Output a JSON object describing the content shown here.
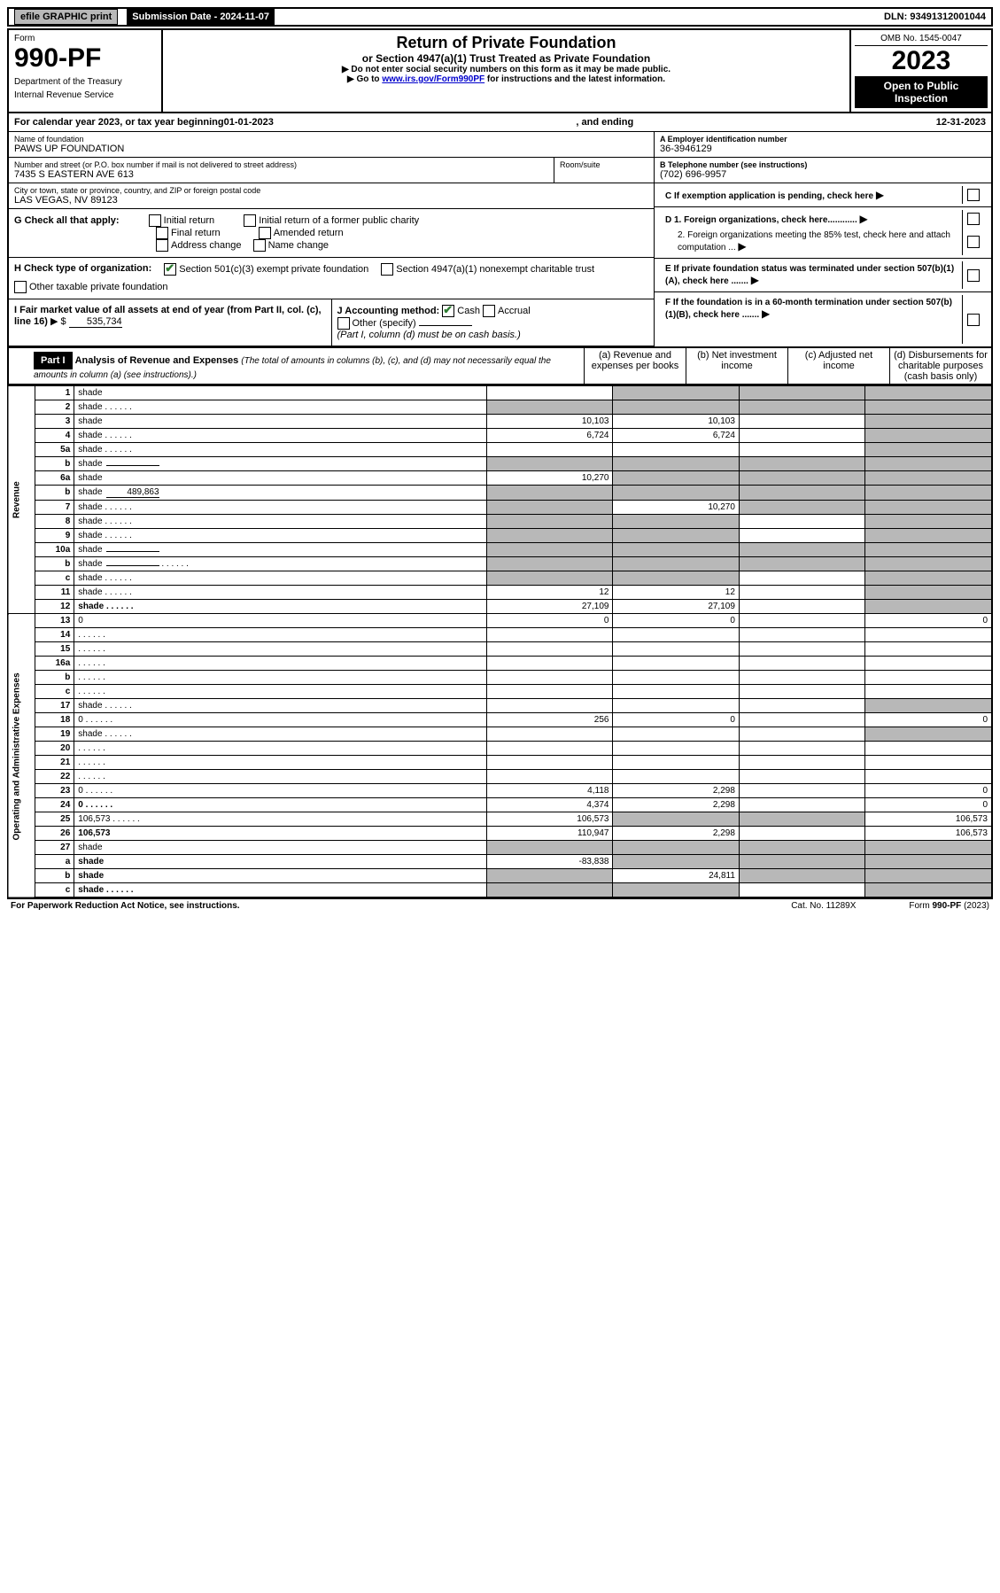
{
  "top": {
    "efile": "efile GRAPHIC print",
    "submission_label": "Submission Date - 2024-11-07",
    "dln": "DLN: 93491312001044"
  },
  "header": {
    "form_label": "Form",
    "form_number": "990-PF",
    "dept": "Department of the Treasury",
    "irs": "Internal Revenue Service",
    "title": "Return of Private Foundation",
    "subtitle": "or Section 4947(a)(1) Trust Treated as Private Foundation",
    "instr1": "▶ Do not enter social security numbers on this form as it may be made public.",
    "instr2_prefix": "▶ Go to ",
    "instr2_link": "www.irs.gov/Form990PF",
    "instr2_suffix": " for instructions and the latest information.",
    "omb": "OMB No. 1545-0047",
    "year": "2023",
    "open": "Open to Public Inspection"
  },
  "calendar": {
    "prefix": "For calendar year 2023, or tax year beginning ",
    "begin": "01-01-2023",
    "mid": " , and ending ",
    "end": "12-31-2023"
  },
  "foundation": {
    "name_label": "Name of foundation",
    "name": "PAWS UP FOUNDATION",
    "addr_label": "Number and street (or P.O. box number if mail is not delivered to street address)",
    "addr": "7435 S EASTERN AVE 613",
    "room_label": "Room/suite",
    "city_label": "City or town, state or province, country, and ZIP or foreign postal code",
    "city": "LAS VEGAS, NV  89123",
    "ein_label": "A Employer identification number",
    "ein": "36-3946129",
    "phone_label": "B Telephone number (see instructions)",
    "phone": "(702) 696-9957",
    "c_label": "C If exemption application is pending, check here",
    "d1": "D 1. Foreign organizations, check here............",
    "d2": "2. Foreign organizations meeting the 85% test, check here and attach computation ...",
    "e": "E  If private foundation status was terminated under section 507(b)(1)(A), check here .......",
    "f": "F  If the foundation is in a 60-month termination under section 507(b)(1)(B), check here ......."
  },
  "g": {
    "label": "G Check all that apply:",
    "opts": [
      "Initial return",
      "Final return",
      "Address change",
      "Initial return of a former public charity",
      "Amended return",
      "Name change"
    ]
  },
  "h": {
    "label": "H Check type of organization:",
    "opt1": "Section 501(c)(3) exempt private foundation",
    "opt2": "Section 4947(a)(1) nonexempt charitable trust",
    "opt3": "Other taxable private foundation"
  },
  "i": {
    "label": "I Fair market value of all assets at end of year (from Part II, col. (c), line 16)",
    "arrow": "▶ $",
    "value": "535,734"
  },
  "j": {
    "label": "J Accounting method:",
    "cash": "Cash",
    "accrual": "Accrual",
    "other": "Other (specify)",
    "note": "(Part I, column (d) must be on cash basis.)"
  },
  "part1": {
    "badge": "Part I",
    "title": "Analysis of Revenue and Expenses",
    "sub": "(The total of amounts in columns (b), (c), and (d) may not necessarily equal the amounts in column (a) (see instructions).)",
    "col_a": "(a) Revenue and expenses per books",
    "col_b": "(b) Net investment income",
    "col_c": "(c) Adjusted net income",
    "col_d": "(d) Disbursements for charitable purposes (cash basis only)"
  },
  "side_labels": {
    "revenue": "Revenue",
    "expenses": "Operating and Administrative Expenses"
  },
  "rows": [
    {
      "n": "1",
      "d": "shade",
      "a": "",
      "b": "shade",
      "c": "shade"
    },
    {
      "n": "2",
      "d": "shade",
      "a": "shade",
      "b": "shade",
      "c": "shade",
      "dots": true
    },
    {
      "n": "3",
      "d": "shade",
      "a": "10,103",
      "b": "10,103",
      "c": ""
    },
    {
      "n": "4",
      "d": "shade",
      "a": "6,724",
      "b": "6,724",
      "c": "",
      "dots": true
    },
    {
      "n": "5a",
      "d": "shade",
      "a": "",
      "b": "",
      "c": "",
      "dots": true
    },
    {
      "n": "b",
      "d": "shade",
      "a": "shade",
      "b": "shade",
      "c": "shade",
      "inline": ""
    },
    {
      "n": "6a",
      "d": "shade",
      "a": "10,270",
      "b": "shade",
      "c": "shade"
    },
    {
      "n": "b",
      "d": "shade",
      "a": "shade",
      "b": "shade",
      "c": "shade",
      "inline": "489,863"
    },
    {
      "n": "7",
      "d": "shade",
      "a": "shade",
      "b": "10,270",
      "c": "shade",
      "dots": true
    },
    {
      "n": "8",
      "d": "shade",
      "a": "shade",
      "b": "shade",
      "c": "",
      "dots": true
    },
    {
      "n": "9",
      "d": "shade",
      "a": "shade",
      "b": "shade",
      "c": "",
      "dots": true
    },
    {
      "n": "10a",
      "d": "shade",
      "a": "shade",
      "b": "shade",
      "c": "shade",
      "inline": ""
    },
    {
      "n": "b",
      "d": "shade",
      "a": "shade",
      "b": "shade",
      "c": "shade",
      "dots": true,
      "inline": ""
    },
    {
      "n": "c",
      "d": "shade",
      "a": "shade",
      "b": "shade",
      "c": "",
      "dots": true
    },
    {
      "n": "11",
      "d": "shade",
      "a": "12",
      "b": "12",
      "c": "",
      "dots": true
    },
    {
      "n": "12",
      "d": "shade",
      "a": "27,109",
      "b": "27,109",
      "c": "",
      "bold": true,
      "dots": true
    },
    {
      "n": "13",
      "d": "0",
      "a": "0",
      "b": "0",
      "c": ""
    },
    {
      "n": "14",
      "d": "",
      "a": "",
      "b": "",
      "c": "",
      "dots": true
    },
    {
      "n": "15",
      "d": "",
      "a": "",
      "b": "",
      "c": "",
      "dots": true
    },
    {
      "n": "16a",
      "d": "",
      "a": "",
      "b": "",
      "c": "",
      "dots": true
    },
    {
      "n": "b",
      "d": "",
      "a": "",
      "b": "",
      "c": "",
      "dots": true
    },
    {
      "n": "c",
      "d": "",
      "a": "",
      "b": "",
      "c": "",
      "dots": true
    },
    {
      "n": "17",
      "d": "shade",
      "a": "",
      "b": "",
      "c": "",
      "dots": true
    },
    {
      "n": "18",
      "d": "0",
      "a": "256",
      "b": "0",
      "c": "",
      "dots": true
    },
    {
      "n": "19",
      "d": "shade",
      "a": "",
      "b": "",
      "c": "",
      "dots": true
    },
    {
      "n": "20",
      "d": "",
      "a": "",
      "b": "",
      "c": "",
      "dots": true
    },
    {
      "n": "21",
      "d": "",
      "a": "",
      "b": "",
      "c": "",
      "dots": true
    },
    {
      "n": "22",
      "d": "",
      "a": "",
      "b": "",
      "c": "",
      "dots": true
    },
    {
      "n": "23",
      "d": "0",
      "a": "4,118",
      "b": "2,298",
      "c": "",
      "dots": true
    },
    {
      "n": "24",
      "d": "0",
      "a": "4,374",
      "b": "2,298",
      "c": "",
      "bold": true,
      "dots": true
    },
    {
      "n": "25",
      "d": "106,573",
      "a": "106,573",
      "b": "shade",
      "c": "shade",
      "dots": true
    },
    {
      "n": "26",
      "d": "106,573",
      "a": "110,947",
      "b": "2,298",
      "c": "",
      "bold": true
    },
    {
      "n": "27",
      "d": "shade",
      "a": "shade",
      "b": "shade",
      "c": "shade"
    },
    {
      "n": "a",
      "d": "shade",
      "a": "-83,838",
      "b": "shade",
      "c": "shade",
      "bold": true
    },
    {
      "n": "b",
      "d": "shade",
      "a": "shade",
      "b": "24,811",
      "c": "shade",
      "bold": true
    },
    {
      "n": "c",
      "d": "shade",
      "a": "shade",
      "b": "shade",
      "c": "",
      "bold": true,
      "dots": true
    }
  ],
  "footer": {
    "left": "For Paperwork Reduction Act Notice, see instructions.",
    "mid": "Cat. No. 11289X",
    "right": "Form 990-PF (2023)"
  }
}
